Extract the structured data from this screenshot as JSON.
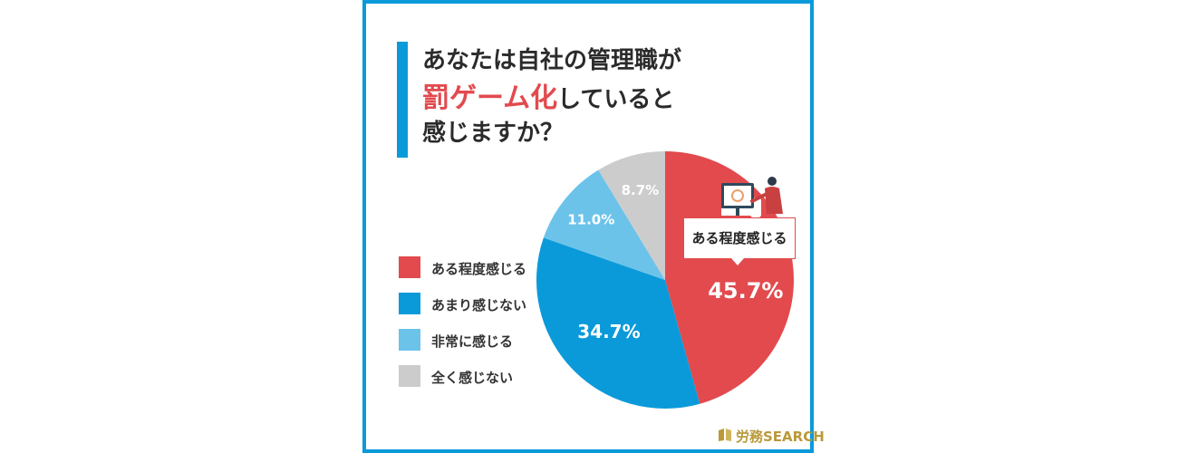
{
  "title": {
    "line1": "あなたは自社の管理職が",
    "line2_accent": "罰ゲーム化",
    "line2_rest": "していると",
    "line3": "感じますか？"
  },
  "colors": {
    "frame": "#0a9ad9",
    "accent": "#e24a4e",
    "logo": "#b9993a"
  },
  "chart_data": {
    "type": "pie",
    "title": "あなたは自社の管理職が罰ゲーム化していると感じますか？",
    "unit": "%",
    "legend_position": "left",
    "slices": [
      {
        "label": "ある程度感じる",
        "value": 45.7,
        "display": "45.7%",
        "color": "#e24a4e"
      },
      {
        "label": "あまり感じない",
        "value": 34.7,
        "display": "34.7%",
        "color": "#0a9ad9"
      },
      {
        "label": "非常に感じる",
        "value": 11.0,
        "display": "11.0%",
        "color": "#6cc3ea"
      },
      {
        "label": "全く感じない",
        "value": 8.7,
        "display": "8.7%",
        "color": "#cccccc"
      }
    ]
  },
  "callout": {
    "text": "ある程度感じる"
  },
  "logo": {
    "text": "労務SEARCH",
    "icon": "book-icon"
  }
}
